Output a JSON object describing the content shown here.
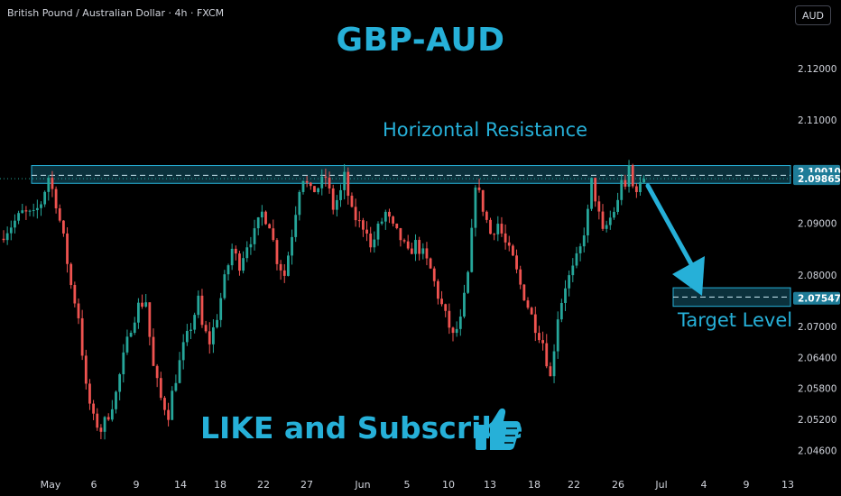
{
  "header": {
    "symbol_text": "British Pound / Australian Dollar · 4h · FXCM",
    "currency_button": "AUD"
  },
  "annotations": {
    "title": "GBP-AUD",
    "resistance_label": "Horizontal Resistance",
    "target_label": "Target Level",
    "cta": "LIKE and Subscribe",
    "thumb_icon": "thumbs-up-icon"
  },
  "colors": {
    "background": "#000000",
    "accent": "#26b0d8",
    "bull": "#26a69a",
    "bear": "#ef5350",
    "axis_text": "#d1d4dc",
    "price_tag_bg": "#1e7c98"
  },
  "chart_data": {
    "type": "candlestick",
    "instrument": "GBP/AUD",
    "timeframe": "4h",
    "y_axis": {
      "ticks": [
        2.12,
        2.11,
        2.1,
        2.09,
        2.08,
        2.07,
        2.064,
        2.058,
        2.052,
        2.046
      ],
      "tick_labels": [
        "2.12000",
        "2.11000",
        "2.10000",
        "2.09000",
        "2.08000",
        "2.07000",
        "2.06400",
        "2.05800",
        "2.05200",
        "2.04600"
      ],
      "ylim": [
        2.042,
        2.126
      ]
    },
    "x_axis": {
      "tick_labels": [
        "May",
        "6",
        "9",
        "14",
        "18",
        "22",
        "27",
        "Jun",
        "5",
        "10",
        "13",
        "18",
        "22",
        "26",
        "Jul",
        "4",
        "9",
        "13"
      ]
    },
    "price_tags": [
      {
        "label": "2.10010",
        "value": 2.1001
      },
      {
        "label": "2.09865",
        "value": 2.09865
      },
      {
        "label": "2.07547",
        "value": 2.07547
      }
    ],
    "zones": [
      {
        "name": "resistance",
        "top": 2.1012,
        "bottom": 2.09775,
        "line": 2.0993
      },
      {
        "name": "target",
        "top": 2.0775,
        "bottom": 2.0739,
        "line": 2.0757
      }
    ],
    "last_price": 2.09865,
    "path_keypoints": [
      [
        0,
        2.088
      ],
      [
        5,
        2.092
      ],
      [
        8,
        2.0915
      ],
      [
        10,
        2.094
      ],
      [
        12,
        2.099
      ],
      [
        14,
        2.094
      ],
      [
        16,
        2.087
      ],
      [
        18,
        2.078
      ],
      [
        20,
        2.072
      ],
      [
        22,
        2.058
      ],
      [
        24,
        2.052
      ],
      [
        26,
        2.05
      ],
      [
        28,
        2.053
      ],
      [
        30,
        2.057
      ],
      [
        32,
        2.064
      ],
      [
        34,
        2.07
      ],
      [
        36,
        2.074
      ],
      [
        38,
        2.075
      ],
      [
        39,
        2.068
      ],
      [
        40,
        2.062
      ],
      [
        42,
        2.056
      ],
      [
        44,
        2.053
      ],
      [
        45,
        2.057
      ],
      [
        46,
        2.06
      ],
      [
        48,
        2.066
      ],
      [
        50,
        2.07
      ],
      [
        52,
        2.075
      ],
      [
        53,
        2.07
      ],
      [
        55,
        2.067
      ],
      [
        57,
        2.072
      ],
      [
        59,
        2.079
      ],
      [
        61,
        2.085
      ],
      [
        63,
        2.082
      ],
      [
        65,
        2.086
      ],
      [
        67,
        2.088
      ],
      [
        69,
        2.092
      ],
      [
        71,
        2.09
      ],
      [
        73,
        2.083
      ],
      [
        75,
        2.08
      ],
      [
        77,
        2.088
      ],
      [
        79,
        2.097
      ],
      [
        80,
        2.099
      ],
      [
        82,
        2.096
      ],
      [
        84,
        2.097
      ],
      [
        86,
        2.099
      ],
      [
        88,
        2.093
      ],
      [
        90,
        2.096
      ],
      [
        91,
        2.099
      ],
      [
        93,
        2.092
      ],
      [
        95,
        2.09
      ],
      [
        97,
        2.089
      ],
      [
        98,
        2.085
      ],
      [
        100,
        2.089
      ],
      [
        102,
        2.092
      ],
      [
        104,
        2.089
      ],
      [
        106,
        2.087
      ],
      [
        108,
        2.084
      ],
      [
        110,
        2.086
      ],
      [
        112,
        2.084
      ],
      [
        114,
        2.081
      ],
      [
        116,
        2.076
      ],
      [
        118,
        2.072
      ],
      [
        120,
        2.068
      ],
      [
        122,
        2.071
      ],
      [
        124,
        2.08
      ],
      [
        125,
        2.088
      ],
      [
        126,
        2.098
      ],
      [
        128,
        2.093
      ],
      [
        130,
        2.088
      ],
      [
        132,
        2.09
      ],
      [
        134,
        2.086
      ],
      [
        136,
        2.083
      ],
      [
        138,
        2.078
      ],
      [
        140,
        2.074
      ],
      [
        142,
        2.07
      ],
      [
        144,
        2.067
      ],
      [
        146,
        2.06
      ],
      [
        147,
        2.066
      ],
      [
        148,
        2.072
      ],
      [
        150,
        2.078
      ],
      [
        152,
        2.081
      ],
      [
        154,
        2.085
      ],
      [
        156,
        2.092
      ],
      [
        157,
        2.098
      ],
      [
        158,
        2.095
      ],
      [
        160,
        2.088
      ],
      [
        162,
        2.091
      ],
      [
        164,
        2.094
      ],
      [
        165,
        2.099
      ],
      [
        166,
        2.096
      ],
      [
        167,
        2.101
      ],
      [
        168,
        2.097
      ],
      [
        170,
        2.097
      ],
      [
        171,
        2.099
      ]
    ]
  }
}
